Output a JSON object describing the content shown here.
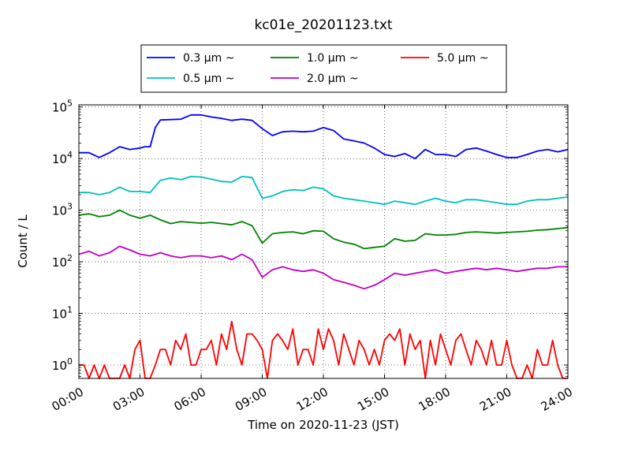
{
  "chart_data": {
    "type": "line",
    "title": "kc01e_20201123.txt",
    "xlabel": "Time on 2020-11-23 (JST)",
    "ylabel": "Count / L",
    "y_scale": "log",
    "ylim": [
      0.55,
      110000
    ],
    "xlim": [
      "00:00",
      "24:00"
    ],
    "x_tick_labels": [
      "00:00",
      "03:00",
      "06:00",
      "09:00",
      "12:00",
      "15:00",
      "18:00",
      "21:00",
      "24:00"
    ],
    "y_tick_labels": [
      {
        "base": "10",
        "exp": "0"
      },
      {
        "base": "10",
        "exp": "1"
      },
      {
        "base": "10",
        "exp": "2"
      },
      {
        "base": "10",
        "exp": "3"
      },
      {
        "base": "10",
        "exp": "4"
      },
      {
        "base": "10",
        "exp": "5"
      }
    ],
    "grid": true,
    "legend_placement": "top",
    "series": [
      {
        "name": "0.3 μm ~",
        "color": "#0000ff",
        "points": [
          [
            "00:00",
            13000
          ],
          [
            "00:30",
            13000
          ],
          [
            "01:00",
            10500
          ],
          [
            "01:30",
            13000
          ],
          [
            "02:00",
            17000
          ],
          [
            "02:30",
            15000
          ],
          [
            "03:00",
            16000
          ],
          [
            "03:15",
            17000
          ],
          [
            "03:30",
            17000
          ],
          [
            "03:45",
            40000
          ],
          [
            "04:00",
            56000
          ],
          [
            "04:30",
            57000
          ],
          [
            "05:00",
            58000
          ],
          [
            "05:30",
            70000
          ],
          [
            "06:00",
            70000
          ],
          [
            "06:30",
            64000
          ],
          [
            "07:00",
            60000
          ],
          [
            "07:30",
            55000
          ],
          [
            "08:00",
            58000
          ],
          [
            "08:30",
            55000
          ],
          [
            "09:00",
            38000
          ],
          [
            "09:30",
            28000
          ],
          [
            "10:00",
            33000
          ],
          [
            "10:30",
            34000
          ],
          [
            "11:00",
            33000
          ],
          [
            "11:30",
            34000
          ],
          [
            "12:00",
            40000
          ],
          [
            "12:30",
            35000
          ],
          [
            "13:00",
            24000
          ],
          [
            "13:30",
            22000
          ],
          [
            "14:00",
            20000
          ],
          [
            "14:30",
            16000
          ],
          [
            "15:00",
            12000
          ],
          [
            "15:30",
            11000
          ],
          [
            "16:00",
            12500
          ],
          [
            "16:30",
            10000
          ],
          [
            "17:00",
            15000
          ],
          [
            "17:30",
            12000
          ],
          [
            "18:00",
            12000
          ],
          [
            "18:30",
            11000
          ],
          [
            "19:00",
            15000
          ],
          [
            "19:30",
            16000
          ],
          [
            "20:00",
            14000
          ],
          [
            "20:30",
            12000
          ],
          [
            "21:00",
            10500
          ],
          [
            "21:30",
            10500
          ],
          [
            "22:00",
            12000
          ],
          [
            "22:30",
            14000
          ],
          [
            "23:00",
            15000
          ],
          [
            "23:30",
            13500
          ],
          [
            "24:00",
            15000
          ]
        ]
      },
      {
        "name": "0.5 μm ~",
        "color": "#00bfbf",
        "points": [
          [
            "00:00",
            2200
          ],
          [
            "00:30",
            2200
          ],
          [
            "01:00",
            2000
          ],
          [
            "01:30",
            2200
          ],
          [
            "02:00",
            2800
          ],
          [
            "02:30",
            2300
          ],
          [
            "03:00",
            2300
          ],
          [
            "03:30",
            2200
          ],
          [
            "04:00",
            3800
          ],
          [
            "04:30",
            4200
          ],
          [
            "05:00",
            3900
          ],
          [
            "05:30",
            4500
          ],
          [
            "06:00",
            4400
          ],
          [
            "06:30",
            4000
          ],
          [
            "07:00",
            3600
          ],
          [
            "07:30",
            3500
          ],
          [
            "08:00",
            4500
          ],
          [
            "08:30",
            4300
          ],
          [
            "09:00",
            1700
          ],
          [
            "09:30",
            1900
          ],
          [
            "10:00",
            2300
          ],
          [
            "10:30",
            2500
          ],
          [
            "11:00",
            2400
          ],
          [
            "11:30",
            2800
          ],
          [
            "12:00",
            2600
          ],
          [
            "12:30",
            1900
          ],
          [
            "13:00",
            1700
          ],
          [
            "13:30",
            1600
          ],
          [
            "14:00",
            1500
          ],
          [
            "14:30",
            1400
          ],
          [
            "15:00",
            1300
          ],
          [
            "15:30",
            1500
          ],
          [
            "16:00",
            1400
          ],
          [
            "16:30",
            1300
          ],
          [
            "17:00",
            1500
          ],
          [
            "17:30",
            1700
          ],
          [
            "18:00",
            1500
          ],
          [
            "18:30",
            1400
          ],
          [
            "19:00",
            1600
          ],
          [
            "19:30",
            1600
          ],
          [
            "20:00",
            1500
          ],
          [
            "20:30",
            1400
          ],
          [
            "21:00",
            1300
          ],
          [
            "21:30",
            1300
          ],
          [
            "22:00",
            1500
          ],
          [
            "22:30",
            1600
          ],
          [
            "23:00",
            1600
          ],
          [
            "23:30",
            1700
          ],
          [
            "24:00",
            1800
          ]
        ]
      },
      {
        "name": "1.0 μm ~",
        "color": "#008000",
        "points": [
          [
            "00:00",
            800
          ],
          [
            "00:30",
            850
          ],
          [
            "01:00",
            750
          ],
          [
            "01:30",
            800
          ],
          [
            "02:00",
            1000
          ],
          [
            "02:30",
            800
          ],
          [
            "03:00",
            700
          ],
          [
            "03:30",
            800
          ],
          [
            "04:00",
            650
          ],
          [
            "04:30",
            550
          ],
          [
            "05:00",
            600
          ],
          [
            "05:30",
            580
          ],
          [
            "06:00",
            560
          ],
          [
            "06:30",
            580
          ],
          [
            "07:00",
            550
          ],
          [
            "07:30",
            520
          ],
          [
            "08:00",
            600
          ],
          [
            "08:30",
            500
          ],
          [
            "09:00",
            230
          ],
          [
            "09:30",
            350
          ],
          [
            "10:00",
            370
          ],
          [
            "10:30",
            380
          ],
          [
            "11:00",
            350
          ],
          [
            "11:30",
            400
          ],
          [
            "12:00",
            390
          ],
          [
            "12:30",
            280
          ],
          [
            "13:00",
            240
          ],
          [
            "13:30",
            220
          ],
          [
            "14:00",
            180
          ],
          [
            "14:30",
            190
          ],
          [
            "15:00",
            200
          ],
          [
            "15:30",
            280
          ],
          [
            "16:00",
            250
          ],
          [
            "16:30",
            260
          ],
          [
            "17:00",
            350
          ],
          [
            "17:30",
            330
          ],
          [
            "18:00",
            330
          ],
          [
            "18:30",
            340
          ],
          [
            "19:00",
            370
          ],
          [
            "19:30",
            380
          ],
          [
            "20:00",
            370
          ],
          [
            "20:30",
            360
          ],
          [
            "21:00",
            370
          ],
          [
            "21:30",
            380
          ],
          [
            "22:00",
            390
          ],
          [
            "22:30",
            410
          ],
          [
            "23:00",
            420
          ],
          [
            "23:30",
            440
          ],
          [
            "24:00",
            460
          ]
        ]
      },
      {
        "name": "2.0 μm ~",
        "color": "#bf00bf",
        "points": [
          [
            "00:00",
            140
          ],
          [
            "00:30",
            160
          ],
          [
            "01:00",
            130
          ],
          [
            "01:30",
            150
          ],
          [
            "02:00",
            200
          ],
          [
            "02:30",
            170
          ],
          [
            "03:00",
            140
          ],
          [
            "03:30",
            130
          ],
          [
            "04:00",
            150
          ],
          [
            "04:30",
            130
          ],
          [
            "05:00",
            120
          ],
          [
            "05:30",
            130
          ],
          [
            "06:00",
            130
          ],
          [
            "06:30",
            120
          ],
          [
            "07:00",
            130
          ],
          [
            "07:30",
            110
          ],
          [
            "08:00",
            140
          ],
          [
            "08:30",
            110
          ],
          [
            "09:00",
            50
          ],
          [
            "09:30",
            70
          ],
          [
            "10:00",
            80
          ],
          [
            "10:30",
            70
          ],
          [
            "11:00",
            65
          ],
          [
            "11:30",
            70
          ],
          [
            "12:00",
            60
          ],
          [
            "12:30",
            45
          ],
          [
            "13:00",
            40
          ],
          [
            "13:30",
            35
          ],
          [
            "14:00",
            30
          ],
          [
            "14:30",
            35
          ],
          [
            "15:00",
            45
          ],
          [
            "15:30",
            60
          ],
          [
            "16:00",
            55
          ],
          [
            "16:30",
            60
          ],
          [
            "17:00",
            65
          ],
          [
            "17:30",
            70
          ],
          [
            "18:00",
            60
          ],
          [
            "18:30",
            65
          ],
          [
            "19:00",
            70
          ],
          [
            "19:30",
            75
          ],
          [
            "20:00",
            70
          ],
          [
            "20:30",
            75
          ],
          [
            "21:00",
            70
          ],
          [
            "21:30",
            65
          ],
          [
            "22:00",
            70
          ],
          [
            "22:30",
            75
          ],
          [
            "23:00",
            75
          ],
          [
            "23:30",
            80
          ],
          [
            "24:00",
            80
          ]
        ]
      },
      {
        "name": "5.0 μm ~",
        "color": "#ff0000",
        "points": [
          [
            "00:00",
            1
          ],
          [
            "00:15",
            1
          ],
          [
            "00:30",
            0.55
          ],
          [
            "00:45",
            1
          ],
          [
            "01:00",
            0.55
          ],
          [
            "01:15",
            1
          ],
          [
            "01:30",
            0.55
          ],
          [
            "01:45",
            0.55
          ],
          [
            "02:00",
            0.55
          ],
          [
            "02:15",
            1
          ],
          [
            "02:30",
            0.55
          ],
          [
            "02:45",
            2
          ],
          [
            "03:00",
            3
          ],
          [
            "03:15",
            0.55
          ],
          [
            "03:30",
            0.55
          ],
          [
            "03:45",
            1
          ],
          [
            "04:00",
            2
          ],
          [
            "04:15",
            2
          ],
          [
            "04:30",
            1
          ],
          [
            "04:45",
            3
          ],
          [
            "05:00",
            2
          ],
          [
            "05:15",
            4
          ],
          [
            "05:30",
            1
          ],
          [
            "05:45",
            1
          ],
          [
            "06:00",
            2
          ],
          [
            "06:15",
            2
          ],
          [
            "06:30",
            3
          ],
          [
            "06:45",
            1
          ],
          [
            "07:00",
            4
          ],
          [
            "07:15",
            2
          ],
          [
            "07:30",
            7
          ],
          [
            "07:45",
            2
          ],
          [
            "08:00",
            1
          ],
          [
            "08:15",
            4
          ],
          [
            "08:30",
            4
          ],
          [
            "08:45",
            3
          ],
          [
            "09:00",
            2
          ],
          [
            "09:15",
            0.55
          ],
          [
            "09:30",
            3
          ],
          [
            "09:45",
            4
          ],
          [
            "10:00",
            3
          ],
          [
            "10:15",
            2
          ],
          [
            "10:30",
            5
          ],
          [
            "10:45",
            1
          ],
          [
            "11:00",
            2
          ],
          [
            "11:15",
            2
          ],
          [
            "11:30",
            1
          ],
          [
            "11:45",
            5
          ],
          [
            "12:00",
            2
          ],
          [
            "12:15",
            5
          ],
          [
            "12:30",
            3
          ],
          [
            "12:45",
            1
          ],
          [
            "13:00",
            4
          ],
          [
            "13:15",
            2
          ],
          [
            "13:30",
            1
          ],
          [
            "13:45",
            3
          ],
          [
            "14:00",
            2
          ],
          [
            "14:15",
            1
          ],
          [
            "14:30",
            2
          ],
          [
            "14:45",
            1
          ],
          [
            "15:00",
            3
          ],
          [
            "15:15",
            4
          ],
          [
            "15:30",
            3
          ],
          [
            "15:45",
            5
          ],
          [
            "16:00",
            1
          ],
          [
            "16:15",
            4
          ],
          [
            "16:30",
            2
          ],
          [
            "16:45",
            3
          ],
          [
            "17:00",
            0.55
          ],
          [
            "17:15",
            3
          ],
          [
            "17:30",
            1
          ],
          [
            "17:45",
            4
          ],
          [
            "18:00",
            2
          ],
          [
            "18:15",
            1
          ],
          [
            "18:30",
            3
          ],
          [
            "18:45",
            4
          ],
          [
            "19:00",
            2
          ],
          [
            "19:15",
            1
          ],
          [
            "19:30",
            3
          ],
          [
            "19:45",
            2
          ],
          [
            "20:00",
            1
          ],
          [
            "20:15",
            3
          ],
          [
            "20:30",
            1
          ],
          [
            "20:45",
            1
          ],
          [
            "21:00",
            3
          ],
          [
            "21:15",
            1
          ],
          [
            "21:30",
            0.55
          ],
          [
            "21:45",
            0.55
          ],
          [
            "22:00",
            1
          ],
          [
            "22:15",
            0.55
          ],
          [
            "22:30",
            2
          ],
          [
            "22:45",
            1
          ],
          [
            "23:00",
            1
          ],
          [
            "23:15",
            3
          ],
          [
            "23:30",
            1
          ],
          [
            "23:45",
            0.55
          ],
          [
            "24:00",
            0.55
          ]
        ]
      }
    ]
  }
}
